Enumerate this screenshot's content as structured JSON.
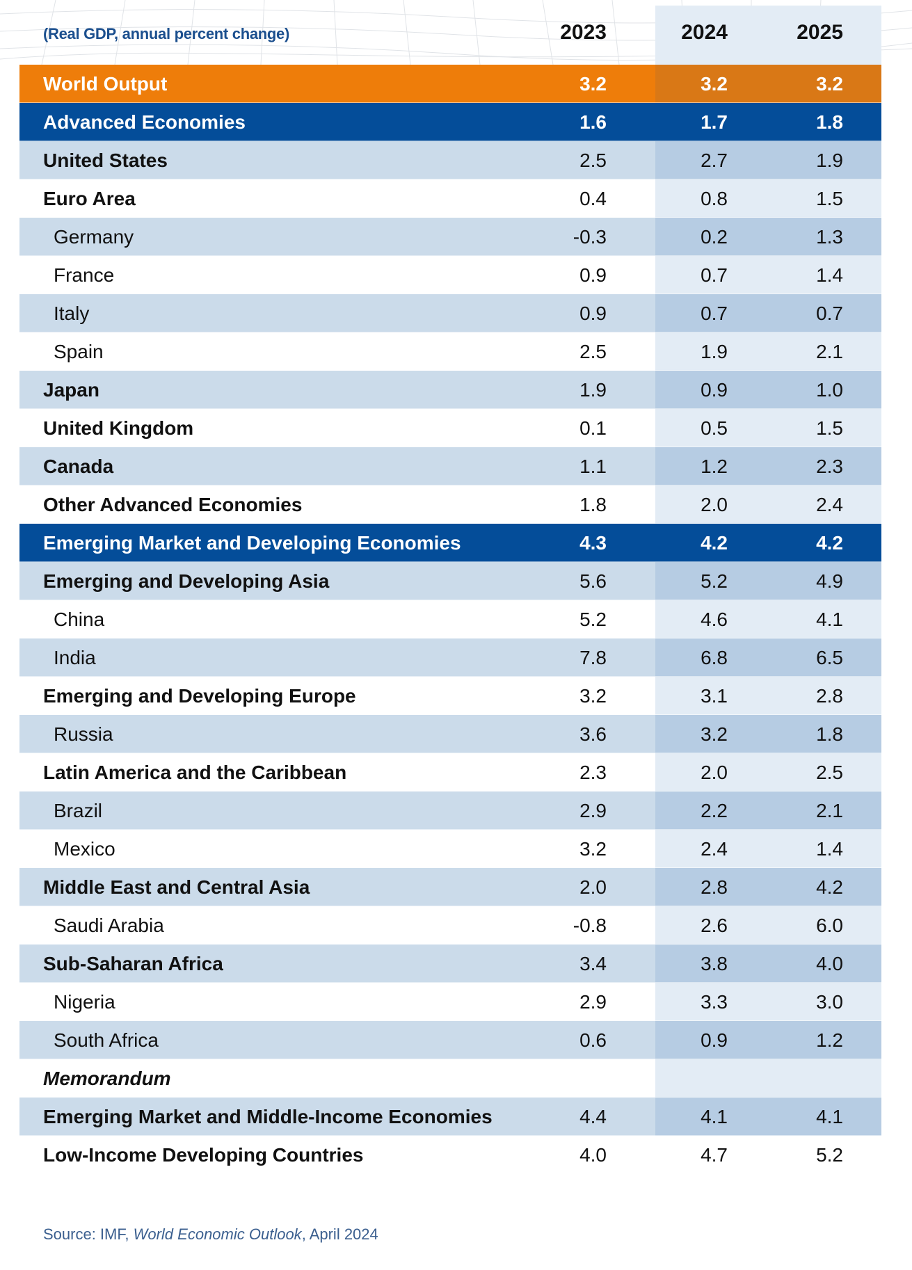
{
  "header": {
    "subtitle": "(Real GDP, annual percent change)",
    "years": [
      "2023",
      "2024",
      "2025"
    ]
  },
  "colors": {
    "world_output": "#ee7d0a",
    "group_header": "#044d99",
    "row_alt": "#cbdbea",
    "projection_column": "#e3ecf5",
    "subtitle_text": "#1b4f8e"
  },
  "rows": [
    {
      "label": "World Output",
      "style": "orange",
      "values": [
        "3.2",
        "3.2",
        "3.2"
      ]
    },
    {
      "label": "Advanced Economies",
      "style": "blue",
      "values": [
        "1.6",
        "1.7",
        "1.8"
      ]
    },
    {
      "label": "United States",
      "style": "main",
      "values": [
        "2.5",
        "2.7",
        "1.9"
      ]
    },
    {
      "label": "Euro Area",
      "style": "main",
      "values": [
        "0.4",
        "0.8",
        "1.5"
      ]
    },
    {
      "label": "Germany",
      "style": "sub",
      "values": [
        "-0.3",
        "0.2",
        "1.3"
      ]
    },
    {
      "label": "France",
      "style": "sub",
      "values": [
        "0.9",
        "0.7",
        "1.4"
      ]
    },
    {
      "label": "Italy",
      "style": "sub",
      "values": [
        "0.9",
        "0.7",
        "0.7"
      ]
    },
    {
      "label": "Spain",
      "style": "sub",
      "values": [
        "2.5",
        "1.9",
        "2.1"
      ]
    },
    {
      "label": "Japan",
      "style": "main",
      "values": [
        "1.9",
        "0.9",
        "1.0"
      ]
    },
    {
      "label": "United Kingdom",
      "style": "main",
      "values": [
        "0.1",
        "0.5",
        "1.5"
      ]
    },
    {
      "label": "Canada",
      "style": "main",
      "values": [
        "1.1",
        "1.2",
        "2.3"
      ]
    },
    {
      "label": "Other Advanced Economies",
      "style": "main",
      "values": [
        "1.8",
        "2.0",
        "2.4"
      ]
    },
    {
      "label": "Emerging Market and Developing Economies",
      "style": "blue",
      "values": [
        "4.3",
        "4.2",
        "4.2"
      ]
    },
    {
      "label": "Emerging and Developing Asia",
      "style": "main",
      "values": [
        "5.6",
        "5.2",
        "4.9"
      ]
    },
    {
      "label": "China",
      "style": "sub",
      "values": [
        "5.2",
        "4.6",
        "4.1"
      ]
    },
    {
      "label": "India",
      "style": "sub",
      "values": [
        "7.8",
        "6.8",
        "6.5"
      ]
    },
    {
      "label": "Emerging and Developing Europe",
      "style": "main",
      "values": [
        "3.2",
        "3.1",
        "2.8"
      ]
    },
    {
      "label": "Russia",
      "style": "sub",
      "values": [
        "3.6",
        "3.2",
        "1.8"
      ]
    },
    {
      "label": "Latin America and the Caribbean",
      "style": "main",
      "values": [
        "2.3",
        "2.0",
        "2.5"
      ]
    },
    {
      "label": "Brazil",
      "style": "sub",
      "values": [
        "2.9",
        "2.2",
        "2.1"
      ]
    },
    {
      "label": "Mexico",
      "style": "sub",
      "values": [
        "3.2",
        "2.4",
        "1.4"
      ]
    },
    {
      "label": "Middle East and Central Asia",
      "style": "main",
      "values": [
        "2.0",
        "2.8",
        "4.2"
      ]
    },
    {
      "label": "Saudi Arabia",
      "style": "sub",
      "values": [
        "-0.8",
        "2.6",
        "6.0"
      ]
    },
    {
      "label": "Sub-Saharan Africa",
      "style": "main",
      "values": [
        "3.4",
        "3.8",
        "4.0"
      ]
    },
    {
      "label": "Nigeria",
      "style": "sub",
      "values": [
        "2.9",
        "3.3",
        "3.0"
      ]
    },
    {
      "label": "South Africa",
      "style": "sub",
      "values": [
        "0.6",
        "0.9",
        "1.2"
      ]
    },
    {
      "label": "Memorandum",
      "style": "memo",
      "values": [
        "",
        "",
        ""
      ]
    },
    {
      "label": "Emerging Market and Middle-Income Economies",
      "style": "main",
      "values": [
        "4.4",
        "4.1",
        "4.1"
      ]
    },
    {
      "label": "Low-Income Developing Countries",
      "style": "main",
      "values": [
        "4.0",
        "4.7",
        "5.2"
      ]
    }
  ],
  "source": {
    "prefix": "Source: IMF, ",
    "title": "World Economic Outlook",
    "suffix": ", April 2024"
  }
}
